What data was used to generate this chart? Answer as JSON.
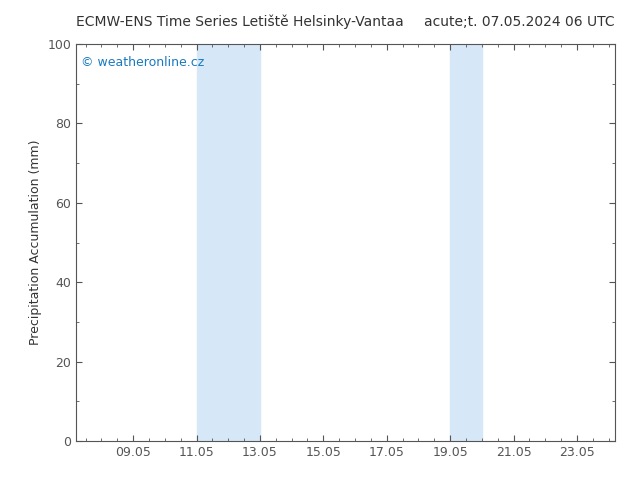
{
  "title_left": "ECMW-ENS Time Series Letiště Helsinky-Vantaa",
  "title_right": "acute;t. 07.05.2024 06 UTC",
  "ylabel": "Precipitation Accumulation (mm)",
  "watermark": "© weatheronline.cz",
  "watermark_color": "#1a7abf",
  "xlim": [
    7.25,
    24.25
  ],
  "ylim": [
    0,
    100
  ],
  "xticks": [
    9.05,
    11.05,
    13.05,
    15.05,
    17.05,
    19.05,
    21.05,
    23.05
  ],
  "xtick_labels": [
    "09.05",
    "11.05",
    "13.05",
    "15.05",
    "17.05",
    "19.05",
    "21.05",
    "23.05"
  ],
  "yticks": [
    0,
    20,
    40,
    60,
    80,
    100
  ],
  "shaded_regions": [
    {
      "xmin": 11.05,
      "xmax": 13.05
    },
    {
      "xmin": 19.05,
      "xmax": 20.05
    }
  ],
  "shade_color": "#d6e8f7",
  "background_color": "#ffffff",
  "plot_bg_color": "#ffffff",
  "border_color": "#555555",
  "tick_color": "#555555",
  "label_color": "#333333",
  "title_fontsize": 10,
  "axis_label_fontsize": 9,
  "tick_fontsize": 9
}
